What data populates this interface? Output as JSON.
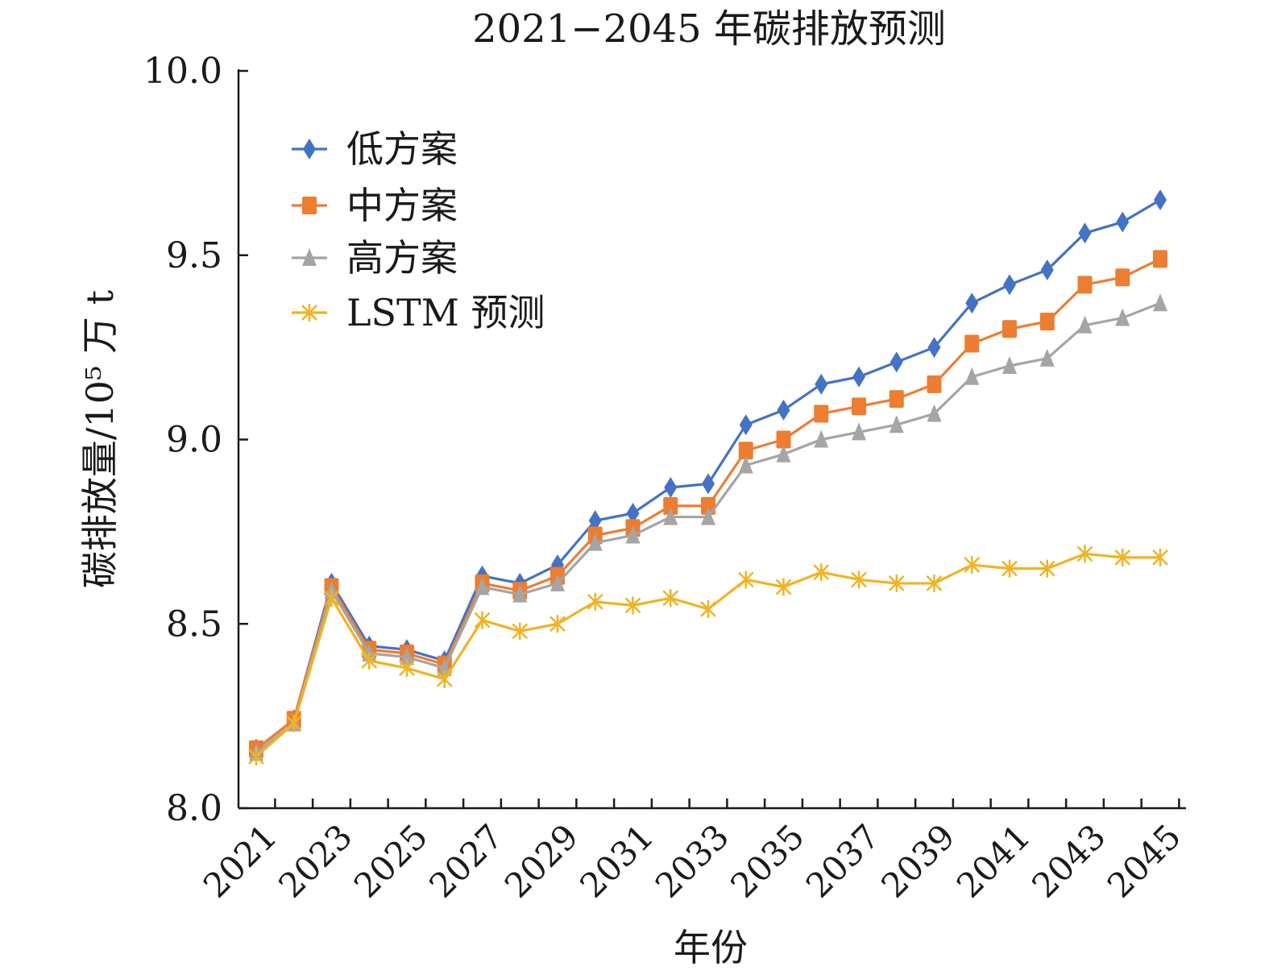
{
  "chart_data": {
    "type": "line",
    "title": "2021−2045 年碳排放预测",
    "xlabel": "年份",
    "ylabel": "碳排放量/10⁵ 万 t",
    "ylim": [
      8.0,
      10.0
    ],
    "yticks": [
      "8.0",
      "8.5",
      "9.0",
      "9.5",
      "10.0"
    ],
    "x": [
      2021,
      2022,
      2023,
      2024,
      2025,
      2026,
      2027,
      2028,
      2029,
      2030,
      2031,
      2032,
      2033,
      2034,
      2035,
      2036,
      2037,
      2038,
      2039,
      2040,
      2041,
      2042,
      2043,
      2044,
      2045
    ],
    "xtick_labels": [
      "2021",
      "2023",
      "2025",
      "2027",
      "2029",
      "2031",
      "2033",
      "2035",
      "2037",
      "2039",
      "2041",
      "2043",
      "2045"
    ],
    "legend_position": "top-left",
    "grid": false,
    "series": [
      {
        "name": "低方案",
        "color": "#4472C4",
        "marker": "diamond",
        "values": [
          8.16,
          8.24,
          8.61,
          8.44,
          8.43,
          8.4,
          8.63,
          8.61,
          8.66,
          8.78,
          8.8,
          8.87,
          8.88,
          9.04,
          9.08,
          9.15,
          9.17,
          9.21,
          9.25,
          9.37,
          9.42,
          9.46,
          9.56,
          9.59,
          9.65
        ]
      },
      {
        "name": "中方案",
        "color": "#ED7D31",
        "marker": "square",
        "values": [
          8.16,
          8.24,
          8.6,
          8.43,
          8.42,
          8.39,
          8.61,
          8.59,
          8.63,
          8.74,
          8.76,
          8.82,
          8.82,
          8.97,
          9.0,
          9.07,
          9.09,
          9.11,
          9.15,
          9.26,
          9.3,
          9.32,
          9.42,
          9.44,
          9.49
        ]
      },
      {
        "name": "高方案",
        "color": "#A5A5A5",
        "marker": "triangle",
        "values": [
          8.15,
          8.23,
          8.59,
          8.42,
          8.41,
          8.38,
          8.6,
          8.58,
          8.61,
          8.72,
          8.74,
          8.79,
          8.79,
          8.93,
          8.96,
          9.0,
          9.02,
          9.04,
          9.07,
          9.17,
          9.2,
          9.22,
          9.31,
          9.33,
          9.37
        ]
      },
      {
        "name": "LSTM 预测",
        "color": "#F0B323",
        "marker": "star",
        "values": [
          8.14,
          8.23,
          8.57,
          8.4,
          8.38,
          8.35,
          8.51,
          8.48,
          8.5,
          8.56,
          8.55,
          8.57,
          8.54,
          8.62,
          8.6,
          8.64,
          8.62,
          8.61,
          8.61,
          8.66,
          8.65,
          8.65,
          8.69,
          8.68,
          8.68
        ]
      }
    ]
  }
}
